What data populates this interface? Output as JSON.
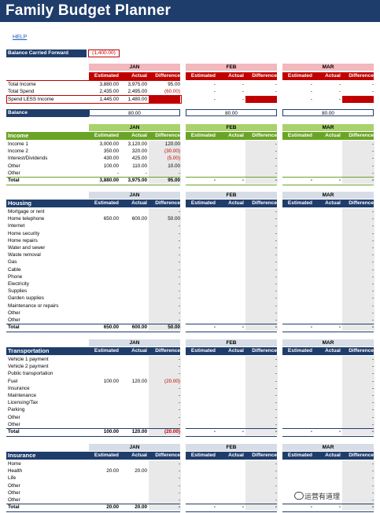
{
  "title": "Family Budget Planner",
  "help": "HELP",
  "balance_carried_forward": {
    "label": "Balance Carried Forward",
    "value": "(1,400.00)"
  },
  "months": [
    "JAN",
    "FEB",
    "MAR"
  ],
  "col_labels": [
    "Estimated",
    "Actual",
    "Difference"
  ],
  "colors": {
    "navy": "#1f3d6b",
    "red": "#c00000",
    "pink_header": "#f2b8bd",
    "green": "#6aa427",
    "green_header": "#a9d26d",
    "grey_header": "#d6dde6",
    "shade": "#e9e9e9"
  },
  "summary": {
    "rows": [
      {
        "label": "Total Income",
        "jan": [
          "3,880.00",
          "3,975.00",
          "95.00"
        ]
      },
      {
        "label": "Total Spend",
        "jan": [
          "2,435.00",
          "2,495.00",
          "(60.00)"
        ]
      },
      {
        "label": "Spend LESS Income",
        "jan": [
          "1,445.00",
          "1,480.00",
          ""
        ]
      }
    ],
    "balance": {
      "label": "Balance",
      "values": [
        "80.00",
        "80.00",
        "80.00"
      ]
    }
  },
  "income": {
    "title": "Income",
    "rows": [
      {
        "label": "Income 1",
        "jan": [
          "3,000.00",
          "3,120.00",
          "120.00"
        ]
      },
      {
        "label": "Income 2",
        "jan": [
          "350.00",
          "320.00",
          "(30.00)"
        ]
      },
      {
        "label": "Interest/Dividends",
        "jan": [
          "430.00",
          "425.00",
          "(5.00)"
        ]
      },
      {
        "label": "Other",
        "jan": [
          "100.00",
          "110.00",
          "10.00"
        ]
      },
      {
        "label": "Other",
        "jan": [
          "-",
          "-",
          "-"
        ]
      }
    ],
    "total": {
      "label": "Total",
      "jan": [
        "3,880.00",
        "3,975.00",
        "95.00"
      ]
    }
  },
  "housing": {
    "title": "Housing",
    "rows": [
      {
        "label": "Mortgage or rent",
        "jan": [
          "",
          "",
          "-"
        ]
      },
      {
        "label": "Home telephone",
        "jan": [
          "650.00",
          "600.00",
          "50.00"
        ]
      },
      {
        "label": "Internet",
        "jan": [
          "",
          "",
          "-"
        ]
      },
      {
        "label": "Home security",
        "jan": [
          "",
          "",
          "-"
        ]
      },
      {
        "label": "Home repairs",
        "jan": [
          "",
          "",
          "-"
        ]
      },
      {
        "label": "Water and sewer",
        "jan": [
          "",
          "",
          "-"
        ]
      },
      {
        "label": "Waste removal",
        "jan": [
          "",
          "",
          "-"
        ]
      },
      {
        "label": "Gas",
        "jan": [
          "",
          "",
          "-"
        ]
      },
      {
        "label": "Cable",
        "jan": [
          "",
          "",
          "-"
        ]
      },
      {
        "label": "Phone",
        "jan": [
          "",
          "",
          "-"
        ]
      },
      {
        "label": "Electricity",
        "jan": [
          "",
          "",
          "-"
        ]
      },
      {
        "label": "Supplies",
        "jan": [
          "",
          "",
          "-"
        ]
      },
      {
        "label": "Garden supplies",
        "jan": [
          "",
          "",
          "-"
        ]
      },
      {
        "label": "Maintenance or repairs",
        "jan": [
          "",
          "",
          "-"
        ]
      },
      {
        "label": "Other",
        "jan": [
          "",
          "",
          "-"
        ]
      },
      {
        "label": "Other",
        "jan": [
          "",
          "",
          "-"
        ]
      }
    ],
    "total": {
      "label": "Total",
      "jan": [
        "650.00",
        "600.00",
        "50.00"
      ]
    }
  },
  "transportation": {
    "title": "Transportation",
    "rows": [
      {
        "label": "Vehicle 1 payment",
        "jan": [
          "",
          "",
          "-"
        ]
      },
      {
        "label": "Vehicle 2 payment",
        "jan": [
          "",
          "",
          "-"
        ]
      },
      {
        "label": "Public transportation",
        "jan": [
          "",
          "",
          "-"
        ]
      },
      {
        "label": "Fuel",
        "jan": [
          "100.00",
          "120.00",
          "(20.00)"
        ]
      },
      {
        "label": "Insurance",
        "jan": [
          "",
          "",
          "-"
        ]
      },
      {
        "label": "Maintenance",
        "jan": [
          "",
          "",
          "-"
        ]
      },
      {
        "label": "Licensing/Tax",
        "jan": [
          "",
          "",
          "-"
        ]
      },
      {
        "label": "Parking",
        "jan": [
          "",
          "",
          "-"
        ]
      },
      {
        "label": "Other",
        "jan": [
          "",
          "",
          "-"
        ]
      },
      {
        "label": "Other",
        "jan": [
          "",
          "",
          "-"
        ]
      }
    ],
    "total": {
      "label": "Total",
      "jan": [
        "100.00",
        "120.00",
        "(20.00)"
      ]
    }
  },
  "insurance": {
    "title": "Insurance",
    "rows": [
      {
        "label": "Home",
        "jan": [
          "",
          "",
          "-"
        ]
      },
      {
        "label": "Health",
        "jan": [
          "20.00",
          "20.00",
          "-"
        ]
      },
      {
        "label": "Life",
        "jan": [
          "",
          "",
          "-"
        ]
      },
      {
        "label": "Other",
        "jan": [
          "",
          "",
          "-"
        ]
      },
      {
        "label": "Other",
        "jan": [
          "",
          "",
          "-"
        ]
      },
      {
        "label": "Other",
        "jan": [
          "",
          "",
          "-"
        ]
      }
    ],
    "total": {
      "label": "Total",
      "jan": [
        "20.00",
        "20.00",
        "-"
      ]
    }
  },
  "empty_month_value": "-",
  "watermark": "运营有道理"
}
